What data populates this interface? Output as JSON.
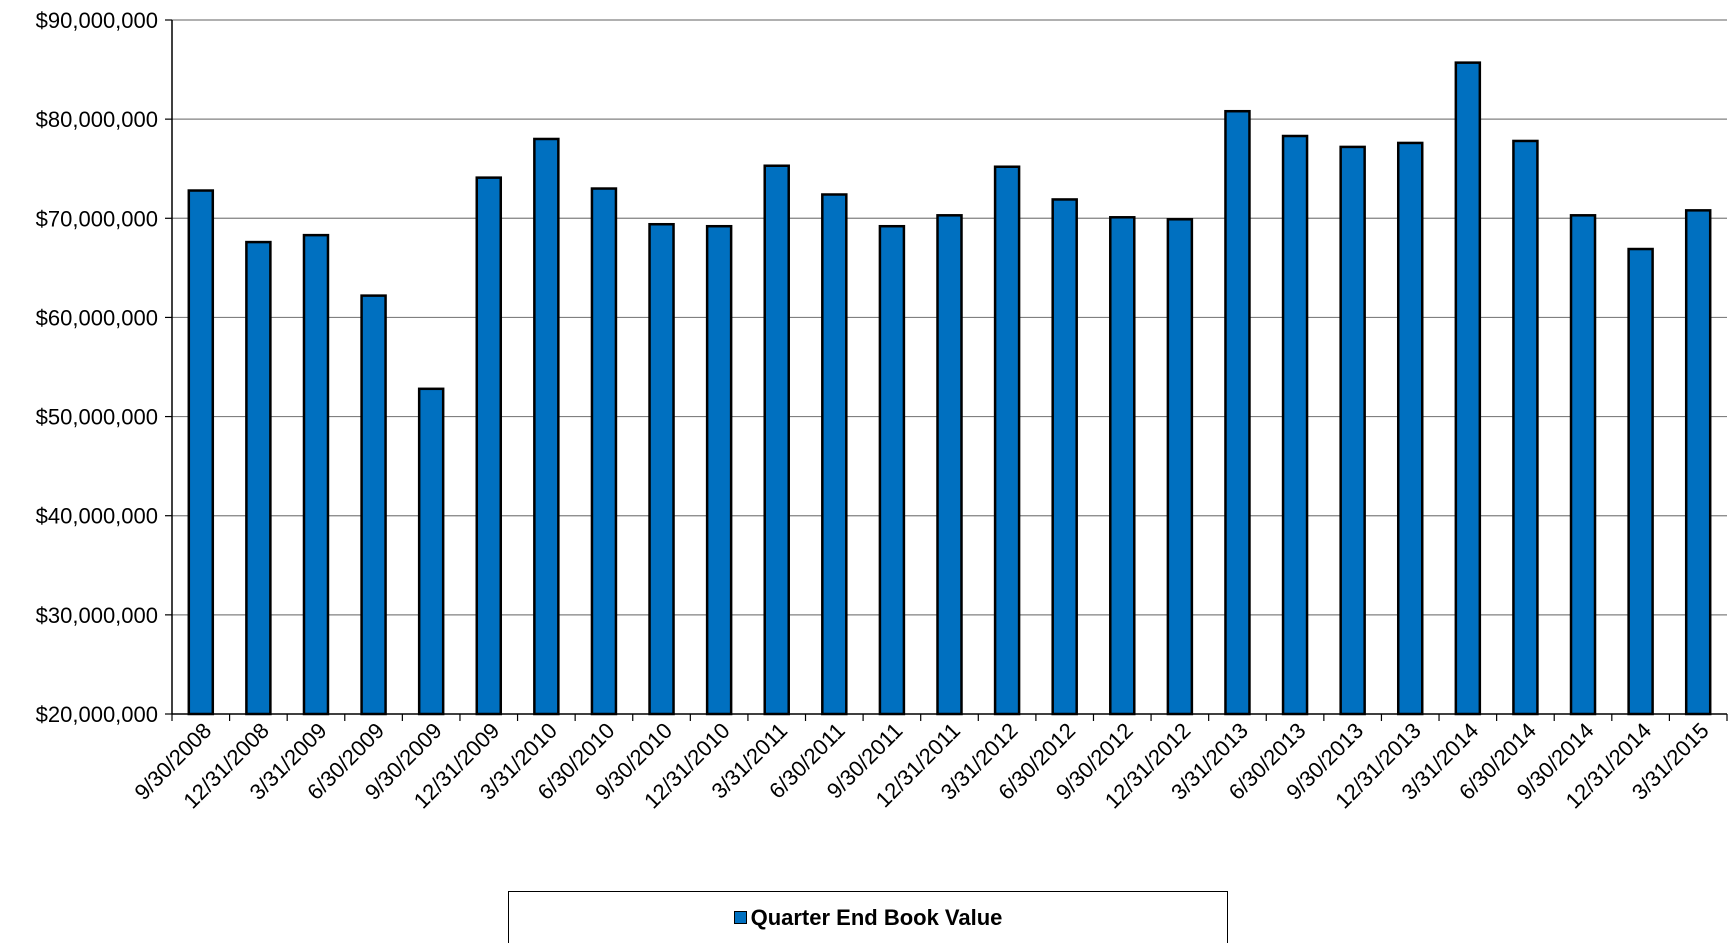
{
  "chart_data": {
    "type": "bar",
    "categories": [
      "9/30/2008",
      "12/31/2008",
      "3/31/2009",
      "6/30/2009",
      "9/30/2009",
      "12/31/2009",
      "3/31/2010",
      "6/30/2010",
      "9/30/2010",
      "12/31/2010",
      "3/31/2011",
      "6/30/2011",
      "9/30/2011",
      "12/31/2011",
      "3/31/2012",
      "6/30/2012",
      "9/30/2012",
      "12/31/2012",
      "3/31/2013",
      "6/30/2013",
      "9/30/2013",
      "12/31/2013",
      "3/31/2014",
      "6/30/2014",
      "9/30/2014",
      "12/31/2014",
      "3/31/2015"
    ],
    "series": [
      {
        "name": "Quarter End Book Value",
        "values": [
          72800000,
          67600000,
          68300000,
          62200000,
          52800000,
          74100000,
          78000000,
          73000000,
          69400000,
          69200000,
          75300000,
          72400000,
          69200000,
          70300000,
          75200000,
          71900000,
          70100000,
          69900000,
          80800000,
          78300000,
          77200000,
          77600000,
          85700000,
          77800000,
          70300000,
          66900000,
          70800000
        ]
      }
    ],
    "yticks": [
      "$20,000,000",
      "$30,000,000",
      "$40,000,000",
      "$50,000,000",
      "$60,000,000",
      "$70,000,000",
      "$80,000,000",
      "$90,000,000"
    ],
    "ylim": [
      20000000,
      90000000
    ],
    "ystep": 10000000,
    "grid": true,
    "legend_position": "bottom",
    "bar_color": "#0070C0",
    "title": "",
    "xlabel": "",
    "ylabel": ""
  },
  "legend": {
    "label": "Quarter End Book Value",
    "color": "#0070C0"
  }
}
